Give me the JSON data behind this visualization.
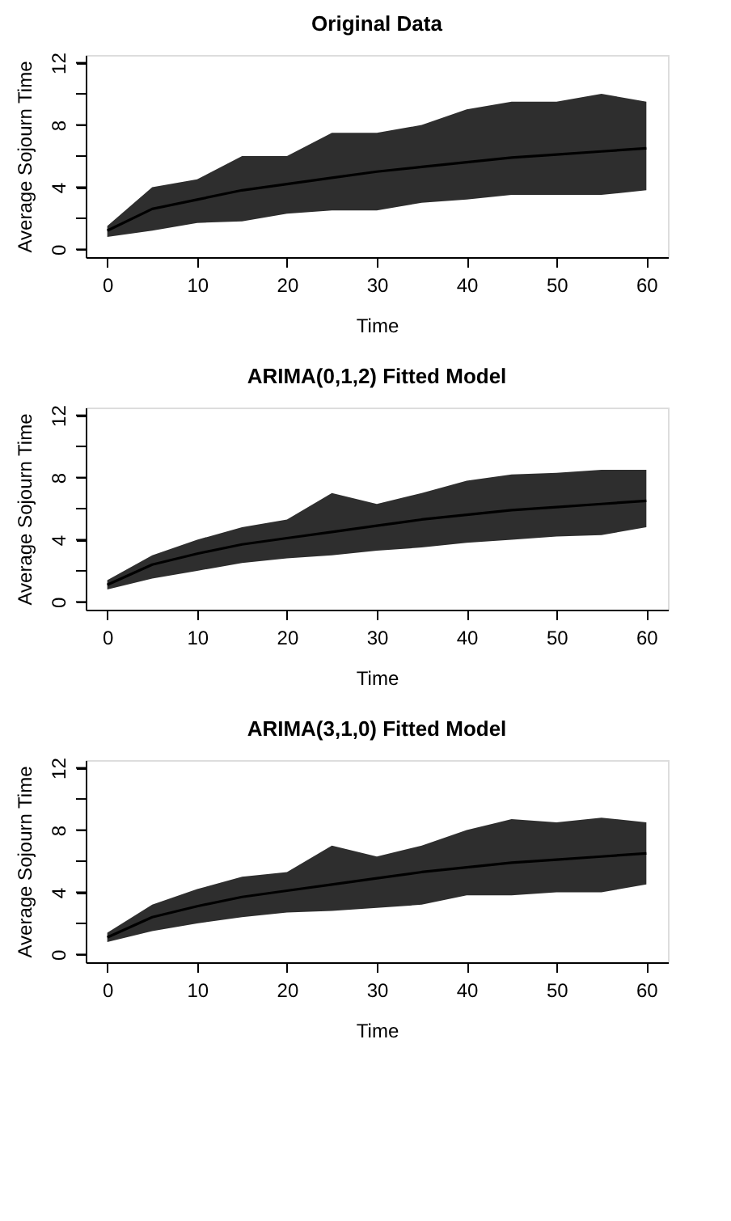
{
  "chart_data": [
    {
      "type": "line",
      "title": "Original Data",
      "xlabel": "Time",
      "ylabel": "Average Sojourn Time",
      "x": [
        0,
        5,
        10,
        15,
        20,
        25,
        30,
        35,
        40,
        45,
        50,
        55,
        60
      ],
      "series": [
        {
          "color": "#000000",
          "values": [
            1.2,
            2.6,
            3.2,
            3.8,
            4.2,
            4.6,
            5.0,
            5.3,
            5.6,
            5.9,
            6.1,
            6.3,
            6.5
          ],
          "lower": [
            0.8,
            1.2,
            1.7,
            1.8,
            2.3,
            2.5,
            2.5,
            3.0,
            3.2,
            3.5,
            3.5,
            3.5,
            3.8
          ],
          "upper": [
            1.5,
            4.0,
            4.5,
            6.0,
            6.0,
            7.5,
            7.5,
            8.0,
            9.0,
            9.5,
            9.5,
            10.0,
            9.5
          ]
        }
      ],
      "xlim": [
        -2.4,
        62.4
      ],
      "xticks": [
        0,
        10,
        20,
        30,
        40,
        50,
        60
      ],
      "ylim": [
        -0.5,
        12.5
      ],
      "yticks": [
        0,
        {
          "value": 2,
          "label": null
        },
        4,
        {
          "value": 6,
          "label": null
        },
        8,
        {
          "value": 10,
          "label": null
        },
        12
      ],
      "grid": false,
      "legend": false
    },
    {
      "type": "line",
      "title": "ARIMA(0,1,2) Fitted Model",
      "xlabel": "Time",
      "ylabel": "Average Sojourn Time",
      "x": [
        0,
        5,
        10,
        15,
        20,
        25,
        30,
        35,
        40,
        45,
        50,
        55,
        60
      ],
      "series": [
        {
          "color": "#000000",
          "values": [
            1.1,
            2.4,
            3.1,
            3.7,
            4.1,
            4.5,
            4.9,
            5.3,
            5.6,
            5.9,
            6.1,
            6.3,
            6.5
          ],
          "lower": [
            0.8,
            1.5,
            2.0,
            2.5,
            2.8,
            3.0,
            3.3,
            3.5,
            3.8,
            4.0,
            4.2,
            4.3,
            4.8
          ],
          "upper": [
            1.4,
            3.0,
            4.0,
            4.8,
            5.3,
            7.0,
            6.3,
            7.0,
            7.8,
            8.2,
            8.3,
            8.5,
            8.5
          ]
        }
      ],
      "xlim": [
        -2.4,
        62.4
      ],
      "xticks": [
        0,
        10,
        20,
        30,
        40,
        50,
        60
      ],
      "ylim": [
        -0.5,
        12.5
      ],
      "yticks": [
        0,
        {
          "value": 2,
          "label": null
        },
        4,
        {
          "value": 6,
          "label": null
        },
        8,
        {
          "value": 10,
          "label": null
        },
        12
      ],
      "grid": false,
      "legend": false
    },
    {
      "type": "line",
      "title": "ARIMA(3,1,0) Fitted Model",
      "xlabel": "Time",
      "ylabel": "Average Sojourn Time",
      "x": [
        0,
        5,
        10,
        15,
        20,
        25,
        30,
        35,
        40,
        45,
        50,
        55,
        60
      ],
      "series": [
        {
          "color": "#000000",
          "values": [
            1.1,
            2.4,
            3.1,
            3.7,
            4.1,
            4.5,
            4.9,
            5.3,
            5.6,
            5.9,
            6.1,
            6.3,
            6.5
          ],
          "lower": [
            0.8,
            1.5,
            2.0,
            2.4,
            2.7,
            2.8,
            3.0,
            3.2,
            3.8,
            3.8,
            4.0,
            4.0,
            4.5
          ],
          "upper": [
            1.4,
            3.2,
            4.2,
            5.0,
            5.3,
            7.0,
            6.3,
            7.0,
            8.0,
            8.7,
            8.5,
            8.8,
            8.5
          ]
        }
      ],
      "xlim": [
        -2.4,
        62.4
      ],
      "xticks": [
        0,
        10,
        20,
        30,
        40,
        50,
        60
      ],
      "ylim": [
        -0.5,
        12.5
      ],
      "yticks": [
        0,
        {
          "value": 2,
          "label": null
        },
        4,
        {
          "value": 6,
          "label": null
        },
        8,
        {
          "value": 10,
          "label": null
        },
        12
      ],
      "grid": false,
      "legend": false
    }
  ]
}
